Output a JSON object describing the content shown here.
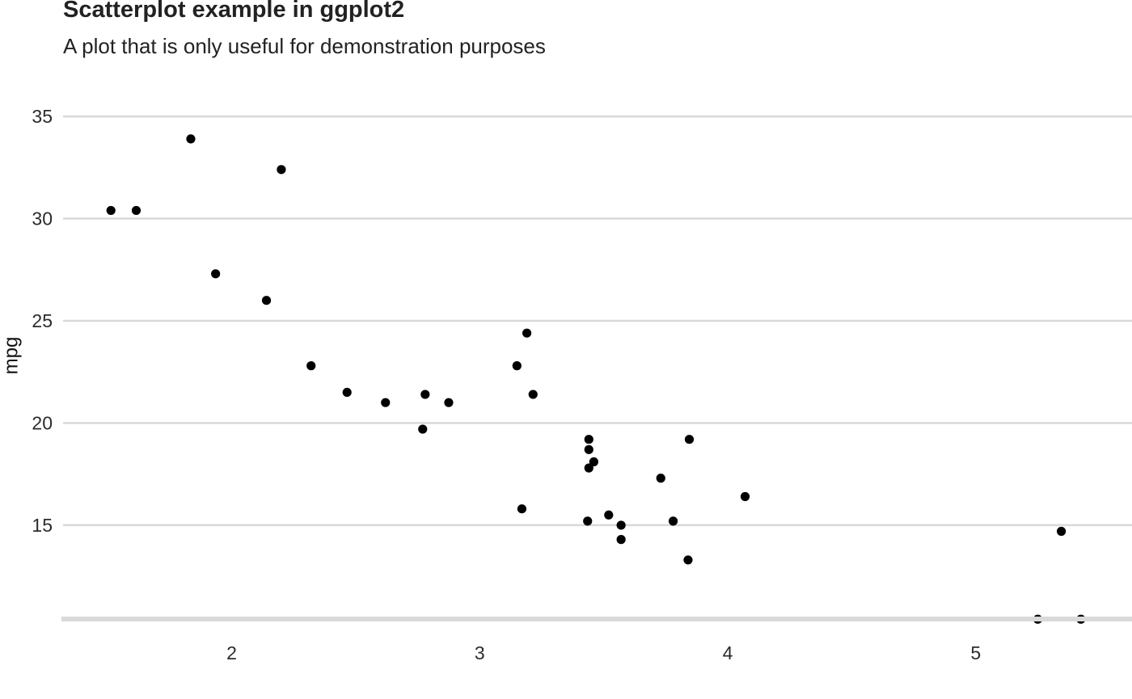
{
  "chart_data": {
    "type": "scatter",
    "title": "Scatterplot example in ggplot2",
    "subtitle": "A plot that is only useful for demonstration purposes",
    "xlabel": "",
    "ylabel": "mpg",
    "xlim": [
      1.32,
      5.63
    ],
    "ylim": [
      10.45,
      36.15
    ],
    "x_ticks": [
      2,
      3,
      4,
      5
    ],
    "y_ticks": [
      15,
      20,
      25,
      30,
      35
    ],
    "grid": "horizontal major",
    "point_color": "#000000",
    "gridline_color": "#d9d9d9",
    "series": [
      {
        "points": [
          {
            "x": 1.513,
            "y": 30.4
          },
          {
            "x": 1.615,
            "y": 30.4
          },
          {
            "x": 1.835,
            "y": 33.9
          },
          {
            "x": 1.935,
            "y": 27.3
          },
          {
            "x": 2.14,
            "y": 26.0
          },
          {
            "x": 2.2,
            "y": 32.4
          },
          {
            "x": 2.32,
            "y": 22.8
          },
          {
            "x": 2.465,
            "y": 21.5
          },
          {
            "x": 2.62,
            "y": 21.0
          },
          {
            "x": 2.77,
            "y": 19.7
          },
          {
            "x": 2.78,
            "y": 21.4
          },
          {
            "x": 2.875,
            "y": 21.0
          },
          {
            "x": 3.15,
            "y": 22.8
          },
          {
            "x": 3.17,
            "y": 15.8
          },
          {
            "x": 3.19,
            "y": 24.4
          },
          {
            "x": 3.215,
            "y": 21.4
          },
          {
            "x": 3.435,
            "y": 15.2
          },
          {
            "x": 3.44,
            "y": 19.2
          },
          {
            "x": 3.44,
            "y": 18.7
          },
          {
            "x": 3.44,
            "y": 17.8
          },
          {
            "x": 3.46,
            "y": 18.1
          },
          {
            "x": 3.52,
            "y": 15.5
          },
          {
            "x": 3.57,
            "y": 15.0
          },
          {
            "x": 3.57,
            "y": 14.3
          },
          {
            "x": 3.73,
            "y": 17.3
          },
          {
            "x": 3.78,
            "y": 15.2
          },
          {
            "x": 3.84,
            "y": 13.3
          },
          {
            "x": 3.845,
            "y": 19.2
          },
          {
            "x": 4.07,
            "y": 16.4
          },
          {
            "x": 5.25,
            "y": 10.4
          },
          {
            "x": 5.345,
            "y": 14.7
          },
          {
            "x": 5.424,
            "y": 10.4
          }
        ]
      }
    ]
  }
}
